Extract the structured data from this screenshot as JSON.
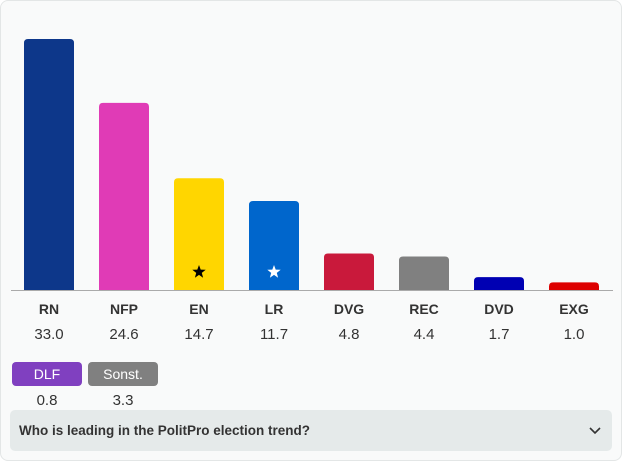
{
  "chart_data": {
    "type": "bar",
    "categories": [
      "RN",
      "NFP",
      "EN",
      "LR",
      "DVG",
      "REC",
      "DVD",
      "EXG"
    ],
    "values": [
      33.0,
      24.6,
      14.7,
      11.7,
      4.8,
      4.4,
      1.7,
      1.0
    ],
    "value_labels": [
      "33.0",
      "24.6",
      "14.7",
      "11.7",
      "4.8",
      "4.4",
      "1.7",
      "1.0"
    ],
    "colors": [
      "#0d378a",
      "#e03bb6",
      "#ffd600",
      "#0066cc",
      "#c9193b",
      "#808080",
      "#0000b3",
      "#dd0000"
    ],
    "markers": {
      "EN": "black-star",
      "LR": "white-star"
    },
    "ylim": [
      0,
      33.0
    ],
    "others": [
      {
        "name": "DLF",
        "value": "0.8",
        "color": "#8040c0"
      },
      {
        "name": "Sonst.",
        "value": "3.3",
        "color": "#808080"
      }
    ]
  },
  "faq": {
    "question": "Who is leading in the PolitPro election trend?"
  }
}
